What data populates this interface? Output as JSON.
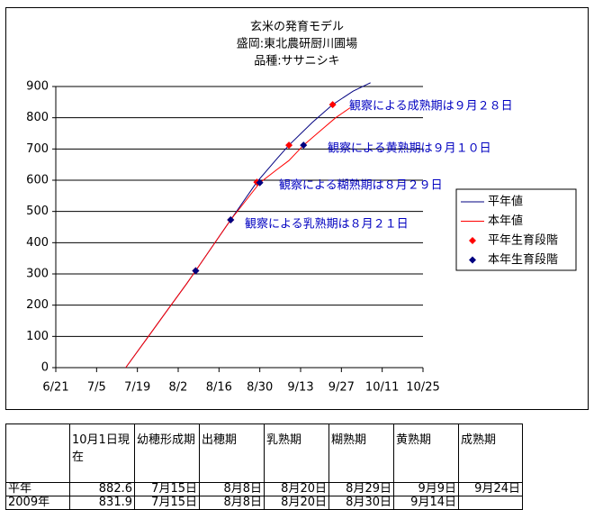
{
  "chart_data": {
    "type": "line",
    "title": "玄米の発育モデル",
    "subtitle": [
      "盛岡:東北農研厨川圃場",
      "品種:ササニシキ"
    ],
    "xlim": [
      "6/21",
      "10/25"
    ],
    "xticks": [
      "6/21",
      "7/5",
      "7/19",
      "8/2",
      "8/16",
      "8/30",
      "9/13",
      "9/27",
      "10/11",
      "10/25"
    ],
    "ylim": [
      0,
      900
    ],
    "yticks": [
      0,
      100,
      200,
      300,
      400,
      500,
      600,
      700,
      800,
      900
    ],
    "grid": true,
    "series": [
      {
        "name": "平年値",
        "color": "#000080",
        "type": "line",
        "x": [
          "7/15",
          "7/22",
          "7/29",
          "8/5",
          "8/8",
          "8/14",
          "8/20",
          "8/29",
          "9/5",
          "9/9",
          "9/17",
          "9/24",
          "10/1",
          "10/7"
        ],
        "values": [
          0,
          90,
          180,
          270,
          310,
          392,
          473,
          594,
          670,
          712,
          785,
          842,
          885,
          912
        ]
      },
      {
        "name": "本年値",
        "color": "#ff0000",
        "type": "line",
        "x": [
          "7/15",
          "7/22",
          "7/29",
          "8/5",
          "8/8",
          "8/14",
          "8/20",
          "8/30",
          "9/5",
          "9/9",
          "9/14",
          "9/20",
          "9/25",
          "9/30"
        ],
        "values": [
          0,
          90,
          180,
          270,
          310,
          392,
          473,
          592,
          635,
          663,
          712,
          760,
          800,
          832
        ]
      },
      {
        "name": "平年生育段階",
        "color": "#ff0000",
        "type": "scatter",
        "x": [
          "8/8",
          "8/20",
          "8/29",
          "9/9",
          "9/24"
        ],
        "values": [
          310,
          473,
          594,
          712,
          842
        ]
      },
      {
        "name": "本年生育段階",
        "color": "#000080",
        "type": "scatter",
        "x": [
          "8/8",
          "8/20",
          "8/30",
          "9/14"
        ],
        "values": [
          310,
          473,
          592,
          712
        ]
      }
    ],
    "annotations": [
      "観察による成熟期は９月２８日",
      "観察による黄熟期は９月１０日",
      "観察による糊熟期は８月２９日",
      "観察による乳熟期は８月２１日"
    ]
  },
  "table": {
    "header": [
      null,
      "10月1日現在",
      "幼穂形成期",
      "出穂期",
      "乳熟期",
      "糊熟期",
      "黄熟期",
      "成熟期"
    ],
    "rows": [
      [
        "平年",
        882.6,
        "7月15日",
        "8月8日",
        "8月20日",
        "8月29日",
        "9月9日",
        "9月24日"
      ],
      [
        "2009年",
        831.9,
        "7月15日",
        "8月8日",
        "8月20日",
        "8月30日",
        "9月14日",
        null
      ]
    ]
  }
}
